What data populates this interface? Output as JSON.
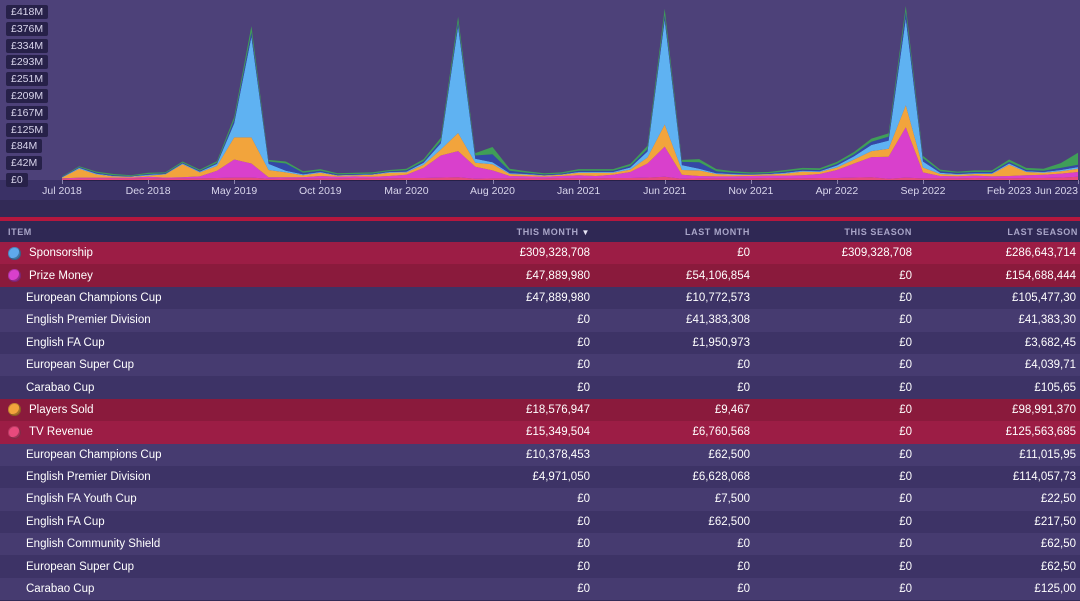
{
  "colors": {
    "divider": "#b5173e",
    "chart_background": "#4d4179",
    "category_row": "#9c1d45",
    "row_dark": "#3d3366",
    "row_light": "#463b70"
  },
  "chart_data": {
    "type": "area",
    "stacked": true,
    "grid": false,
    "legend": "none",
    "y_unit": "£M",
    "y_max": 418,
    "x_range": "Jul 2018 - Jun 2023",
    "y_ticks": [
      {
        "label": "£418M",
        "value": 418
      },
      {
        "label": "£376M",
        "value": 376
      },
      {
        "label": "£334M",
        "value": 334
      },
      {
        "label": "£293M",
        "value": 293
      },
      {
        "label": "£251M",
        "value": 251
      },
      {
        "label": "£209M",
        "value": 209
      },
      {
        "label": "£167M",
        "value": 167
      },
      {
        "label": "£125M",
        "value": 125
      },
      {
        "label": "£84M",
        "value": 84
      },
      {
        "label": "£42M",
        "value": 42
      },
      {
        "label": "£0",
        "value": 0
      }
    ],
    "x_ticks": [
      {
        "label": "Jul 2018",
        "index": 0
      },
      {
        "label": "Dec 2018",
        "index": 5
      },
      {
        "label": "May 2019",
        "index": 10
      },
      {
        "label": "Oct 2019",
        "index": 15
      },
      {
        "label": "Mar 2020",
        "index": 20
      },
      {
        "label": "Aug 2020",
        "index": 25
      },
      {
        "label": "Jan 2021",
        "index": 30
      },
      {
        "label": "Jun 2021",
        "index": 35
      },
      {
        "label": "Nov 2021",
        "index": 40
      },
      {
        "label": "Apr 2022",
        "index": 45
      },
      {
        "label": "Sep 2022",
        "index": 50
      },
      {
        "label": "Feb 2023",
        "index": 55
      },
      {
        "label": "Jun 2023",
        "index": 59
      }
    ],
    "series": [
      {
        "name": "TV Revenue",
        "color": "#e84a7d",
        "values": [
          3,
          4,
          4,
          4,
          4,
          5,
          4,
          4,
          4,
          5,
          6,
          6,
          3,
          4,
          4,
          4,
          4,
          5,
          4,
          4,
          5,
          5,
          6,
          7,
          3,
          4,
          4,
          4,
          4,
          5,
          4,
          4,
          5,
          5,
          6,
          8,
          3,
          4,
          4,
          4,
          4,
          5,
          4,
          4,
          5,
          5,
          6,
          7,
          3,
          6,
          4,
          4,
          4,
          5,
          4,
          4,
          5,
          5,
          6,
          8
        ]
      },
      {
        "name": "Prize Money",
        "color": "#d940cc",
        "values": [
          1,
          2,
          2,
          2,
          2,
          3,
          2,
          3,
          5,
          18,
          45,
          35,
          4,
          3,
          3,
          6,
          4,
          4,
          4,
          6,
          8,
          25,
          55,
          65,
          30,
          20,
          6,
          5,
          4,
          5,
          8,
          6,
          8,
          15,
          35,
          75,
          10,
          6,
          5,
          5,
          6,
          6,
          7,
          8,
          10,
          20,
          35,
          50,
          55,
          125,
          15,
          6,
          5,
          6,
          5,
          6,
          7,
          8,
          10,
          12
        ]
      },
      {
        "name": "Players Sold",
        "color": "#f2a43c",
        "values": [
          2,
          22,
          8,
          3,
          2,
          3,
          8,
          32,
          10,
          12,
          55,
          65,
          18,
          12,
          5,
          8,
          3,
          3,
          5,
          8,
          6,
          8,
          15,
          45,
          10,
          15,
          5,
          4,
          3,
          3,
          6,
          8,
          5,
          6,
          15,
          55,
          12,
          14,
          6,
          4,
          3,
          3,
          5,
          9,
          5,
          6,
          10,
          15,
          20,
          55,
          12,
          5,
          4,
          4,
          6,
          28,
          8,
          5,
          6,
          8
        ]
      },
      {
        "name": "Sponsorship",
        "color": "#5fb2f2",
        "values": [
          1,
          2,
          2,
          1,
          1,
          2,
          1,
          2,
          2,
          5,
          35,
          250,
          15,
          4,
          2,
          2,
          1,
          1,
          1,
          2,
          2,
          5,
          15,
          265,
          10,
          5,
          2,
          2,
          1,
          1,
          2,
          2,
          2,
          5,
          15,
          260,
          12,
          4,
          2,
          2,
          1,
          1,
          2,
          2,
          2,
          5,
          8,
          15,
          20,
          215,
          15,
          3,
          2,
          2,
          2,
          3,
          2,
          2,
          3,
          4
        ]
      },
      {
        "name": "navy-series",
        "color": "#3448a6",
        "values": [
          1,
          2,
          2,
          2,
          1,
          2,
          2,
          2,
          2,
          3,
          8,
          12,
          6,
          18,
          4,
          3,
          2,
          2,
          2,
          2,
          3,
          4,
          6,
          10,
          8,
          20,
          6,
          3,
          2,
          2,
          3,
          3,
          3,
          4,
          6,
          12,
          8,
          16,
          5,
          3,
          2,
          2,
          3,
          3,
          3,
          4,
          5,
          8,
          10,
          18,
          8,
          4,
          3,
          3,
          3,
          4,
          3,
          3,
          5,
          6
        ]
      },
      {
        "name": "green-series",
        "color": "#3f9e58",
        "values": [
          1,
          2,
          3,
          3,
          2,
          3,
          2,
          3,
          3,
          4,
          8,
          15,
          4,
          5,
          4,
          4,
          3,
          3,
          3,
          3,
          4,
          5,
          8,
          14,
          6,
          18,
          5,
          4,
          3,
          3,
          4,
          4,
          4,
          5,
          8,
          16,
          5,
          8,
          5,
          4,
          3,
          3,
          4,
          4,
          4,
          5,
          6,
          8,
          8,
          14,
          6,
          4,
          3,
          4,
          4,
          6,
          5,
          5,
          12,
          30
        ]
      }
    ]
  },
  "table": {
    "sort_arrow": "▼",
    "columns": [
      {
        "id": "item",
        "label": "ITEM",
        "sorted": false
      },
      {
        "id": "this-month",
        "label": "THIS MONTH",
        "sorted": true
      },
      {
        "id": "last-month",
        "label": "LAST MONTH",
        "sorted": false
      },
      {
        "id": "this-season",
        "label": "THIS SEASON",
        "sorted": false
      },
      {
        "id": "last-season",
        "label": "LAST SEASON",
        "sorted": false
      }
    ],
    "rows": [
      {
        "label": "Sponsorship",
        "type": "category",
        "icon": "sponsorship-series-icon",
        "icon_color": "#5fa9ec",
        "values": [
          "£309,328,708",
          "£0",
          "£309,328,708",
          "£286,643,714"
        ]
      },
      {
        "label": "Prize Money",
        "type": "category",
        "icon": "prize-money-series-icon",
        "icon_color": "#d940cc",
        "values": [
          "£47,889,980",
          "£54,106,854",
          "£0",
          "£154,688,444"
        ]
      },
      {
        "label": "European Champions Cup",
        "type": "sub",
        "values": [
          "£47,889,980",
          "£10,772,573",
          "£0",
          "£105,477,30"
        ]
      },
      {
        "label": "English Premier Division",
        "type": "sub",
        "values": [
          "£0",
          "£41,383,308",
          "£0",
          "£41,383,30"
        ]
      },
      {
        "label": "English FA Cup",
        "type": "sub",
        "values": [
          "£0",
          "£1,950,973",
          "£0",
          "£3,682,45"
        ]
      },
      {
        "label": "European Super Cup",
        "type": "sub",
        "values": [
          "£0",
          "£0",
          "£0",
          "£4,039,71"
        ]
      },
      {
        "label": "Carabao Cup",
        "type": "sub",
        "values": [
          "£0",
          "£0",
          "£0",
          "£105,65"
        ]
      },
      {
        "label": "Players Sold",
        "type": "category",
        "icon": "players-sold-series-icon",
        "icon_color": "#f2a43c",
        "values": [
          "£18,576,947",
          "£9,467",
          "£0",
          "£98,991,370"
        ]
      },
      {
        "label": "TV Revenue",
        "type": "category",
        "icon": "tv-revenue-series-icon",
        "icon_color": "#e84a7d",
        "values": [
          "£15,349,504",
          "£6,760,568",
          "£0",
          "£125,563,685"
        ]
      },
      {
        "label": "European Champions Cup",
        "type": "sub",
        "values": [
          "£10,378,453",
          "£62,500",
          "£0",
          "£11,015,95"
        ]
      },
      {
        "label": "English Premier Division",
        "type": "sub",
        "values": [
          "£4,971,050",
          "£6,628,068",
          "£0",
          "£114,057,73"
        ]
      },
      {
        "label": "English FA Youth Cup",
        "type": "sub",
        "values": [
          "£0",
          "£7,500",
          "£0",
          "£22,50"
        ]
      },
      {
        "label": "English FA Cup",
        "type": "sub",
        "values": [
          "£0",
          "£62,500",
          "£0",
          "£217,50"
        ]
      },
      {
        "label": "English Community Shield",
        "type": "sub",
        "values": [
          "£0",
          "£0",
          "£0",
          "£62,50"
        ]
      },
      {
        "label": "European Super Cup",
        "type": "sub",
        "values": [
          "£0",
          "£0",
          "£0",
          "£62,50"
        ]
      },
      {
        "label": "Carabao Cup",
        "type": "sub",
        "values": [
          "£0",
          "£0",
          "£0",
          "£125,00"
        ]
      }
    ]
  }
}
